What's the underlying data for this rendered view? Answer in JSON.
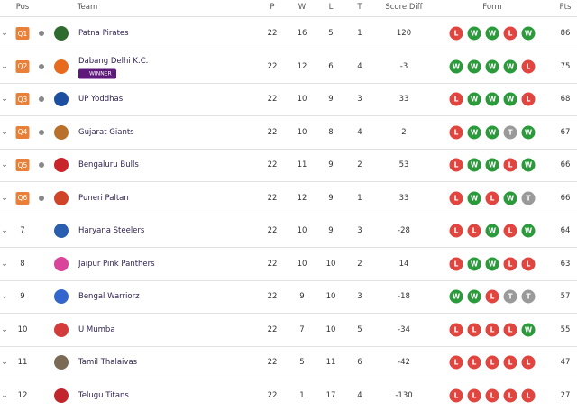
{
  "table": {
    "columns": [
      "Pos",
      "Team",
      "P",
      "W",
      "L",
      "T",
      "Score Diff",
      "Form",
      "Pts"
    ],
    "rows": [
      {
        "pos": "Q1",
        "team": "Patna Pirates",
        "p": 22,
        "w": 16,
        "l": 5,
        "t": 1,
        "diff": 120,
        "form": [
          "L",
          "W",
          "W",
          "L",
          "W"
        ],
        "pts": 86
      },
      {
        "pos": "Q2",
        "team": "Dabang Delhi K.C.",
        "badge": "WINNER",
        "p": 22,
        "w": 12,
        "l": 6,
        "t": 4,
        "diff": -3,
        "form": [
          "W",
          "W",
          "W",
          "W",
          "L"
        ],
        "pts": 75
      },
      {
        "pos": "Q3",
        "team": "UP Yoddhas",
        "p": 22,
        "w": 10,
        "l": 9,
        "t": 3,
        "diff": 33,
        "form": [
          "L",
          "W",
          "W",
          "W",
          "L"
        ],
        "pts": 68
      },
      {
        "pos": "Q4",
        "team": "Gujarat Giants",
        "p": 22,
        "w": 10,
        "l": 8,
        "t": 4,
        "diff": 2,
        "form": [
          "L",
          "W",
          "W",
          "T",
          "W"
        ],
        "pts": 67
      },
      {
        "pos": "Q5",
        "team": "Bengaluru Bulls",
        "p": 22,
        "w": 11,
        "l": 9,
        "t": 2,
        "diff": 53,
        "form": [
          "L",
          "W",
          "W",
          "L",
          "W"
        ],
        "pts": 66
      },
      {
        "pos": "Q6",
        "team": "Puneri Paltan",
        "p": 22,
        "w": 12,
        "l": 9,
        "t": 1,
        "diff": 33,
        "form": [
          "L",
          "W",
          "L",
          "W",
          "T"
        ],
        "pts": 66
      },
      {
        "pos": 7,
        "team": "Haryana Steelers",
        "p": 22,
        "w": 10,
        "l": 9,
        "t": 3,
        "diff": -28,
        "form": [
          "L",
          "L",
          "W",
          "L",
          "W"
        ],
        "pts": 64
      },
      {
        "pos": 8,
        "team": "Jaipur Pink Panthers",
        "p": 22,
        "w": 10,
        "l": 10,
        "t": 2,
        "diff": 14,
        "form": [
          "L",
          "W",
          "W",
          "L",
          "L"
        ],
        "pts": 63
      },
      {
        "pos": 9,
        "team": "Bengal Warriorz",
        "p": 22,
        "w": 9,
        "l": 10,
        "t": 3,
        "diff": -18,
        "form": [
          "W",
          "W",
          "L",
          "T",
          "T"
        ],
        "pts": 57
      },
      {
        "pos": 10,
        "team": "U Mumba",
        "p": 22,
        "w": 7,
        "l": 10,
        "t": 5,
        "diff": -34,
        "form": [
          "L",
          "L",
          "L",
          "L",
          "W"
        ],
        "pts": 55
      },
      {
        "pos": 11,
        "team": "Tamil Thalaivas",
        "p": 22,
        "w": 5,
        "l": 11,
        "t": 6,
        "diff": -42,
        "form": [
          "L",
          "L",
          "L",
          "L",
          "L"
        ],
        "pts": 47
      },
      {
        "pos": 12,
        "team": "Telugu Titans",
        "p": 22,
        "w": 1,
        "l": 17,
        "t": 4,
        "diff": -130,
        "form": [
          "L",
          "L",
          "L",
          "L",
          "L"
        ],
        "pts": 27
      }
    ]
  }
}
